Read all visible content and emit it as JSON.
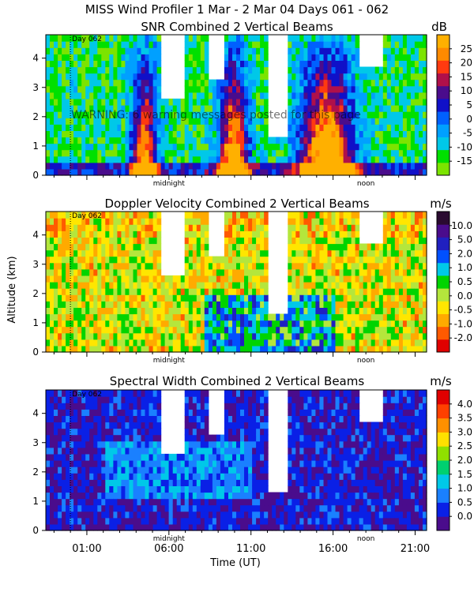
{
  "page_title": "MISS Wind Profiler    1 Mar -  2 Mar 04 Days 061 - 062",
  "warning": "WARNING: 6 warning messages posted for this page",
  "y_axis_label": "Altitude (km)",
  "x_axis_label": "Time (UT)",
  "day_marker_label": "Day 062",
  "midnight_label": "midnight",
  "noon_label": "noon",
  "colors": {
    "background": "#ffffff",
    "axis": "#000000",
    "day_marker": "#000000"
  },
  "chart_data": [
    {
      "type": "heatmap",
      "title": "SNR Combined 2 Vertical Beams",
      "unit": "dB",
      "ylabel": "",
      "xlabel": "",
      "x_ticks": [],
      "xlim": [
        -1.5,
        21.7
      ],
      "ylim": [
        0,
        4.8
      ],
      "y_ticks": [
        "0",
        "1",
        "2",
        "3",
        "4"
      ],
      "colorbar_labels": [
        "-15",
        "-10",
        "-5",
        "0",
        "5",
        "10",
        "15",
        "20",
        "25"
      ],
      "colorbar_colors": [
        "#7ce400",
        "#00e000",
        "#00c8e8",
        "#00a0ff",
        "#0060ff",
        "#1010c8",
        "#4a0c8c",
        "#b0104a",
        "#ff3a10",
        "#ff8a00",
        "#ffb000"
      ],
      "day_marker_x": 0.0,
      "midnight_x": 6.0,
      "noon_x": 18.0
    },
    {
      "type": "heatmap",
      "title": "Doppler Velocity Combined 2 Vertical Beams",
      "unit": "m/s",
      "ylabel": "Altitude (km)",
      "xlabel": "",
      "x_ticks": [],
      "xlim": [
        -1.5,
        21.7
      ],
      "ylim": [
        0,
        4.8
      ],
      "y_ticks": [
        "0",
        "1",
        "2",
        "3",
        "4"
      ],
      "colorbar_labels": [
        "-2.0",
        "-1.0",
        "-0.5",
        "0.0",
        "0.5",
        "1.0",
        "2.0",
        "5.0",
        "10.0"
      ],
      "colorbar_colors": [
        "#e00000",
        "#ff5a00",
        "#ffaa00",
        "#ffe600",
        "#b4e63c",
        "#00d400",
        "#00c8e8",
        "#0050ff",
        "#2020c0",
        "#4a0c8c",
        "#2a0a30"
      ],
      "day_marker_x": 0.0,
      "midnight_x": 6.0,
      "noon_x": 18.0
    },
    {
      "type": "heatmap",
      "title": "Spectral Width Combined 2 Vertical Beams",
      "unit": "m/s",
      "ylabel": "",
      "xlabel": "Time (UT)",
      "x_ticks": [
        "01:00",
        "06:00",
        "11:00",
        "16:00",
        "21:00"
      ],
      "x_tick_values": [
        1,
        6,
        11,
        16,
        21
      ],
      "xlim": [
        -1.5,
        21.7
      ],
      "ylim": [
        0,
        4.8
      ],
      "y_ticks": [
        "0",
        "1",
        "2",
        "3",
        "4"
      ],
      "colorbar_labels": [
        "0.0",
        "0.5",
        "1.0",
        "1.5",
        "2.0",
        "2.5",
        "3.0",
        "3.5",
        "4.0"
      ],
      "colorbar_colors": [
        "#4a0c8c",
        "#0a20e6",
        "#1a80ff",
        "#00c8e8",
        "#00d070",
        "#90e000",
        "#ffe000",
        "#ff9000",
        "#ff4000",
        "#e00000"
      ],
      "day_marker_x": 0.0,
      "midnight_x": 6.0,
      "noon_x": 18.0
    }
  ]
}
